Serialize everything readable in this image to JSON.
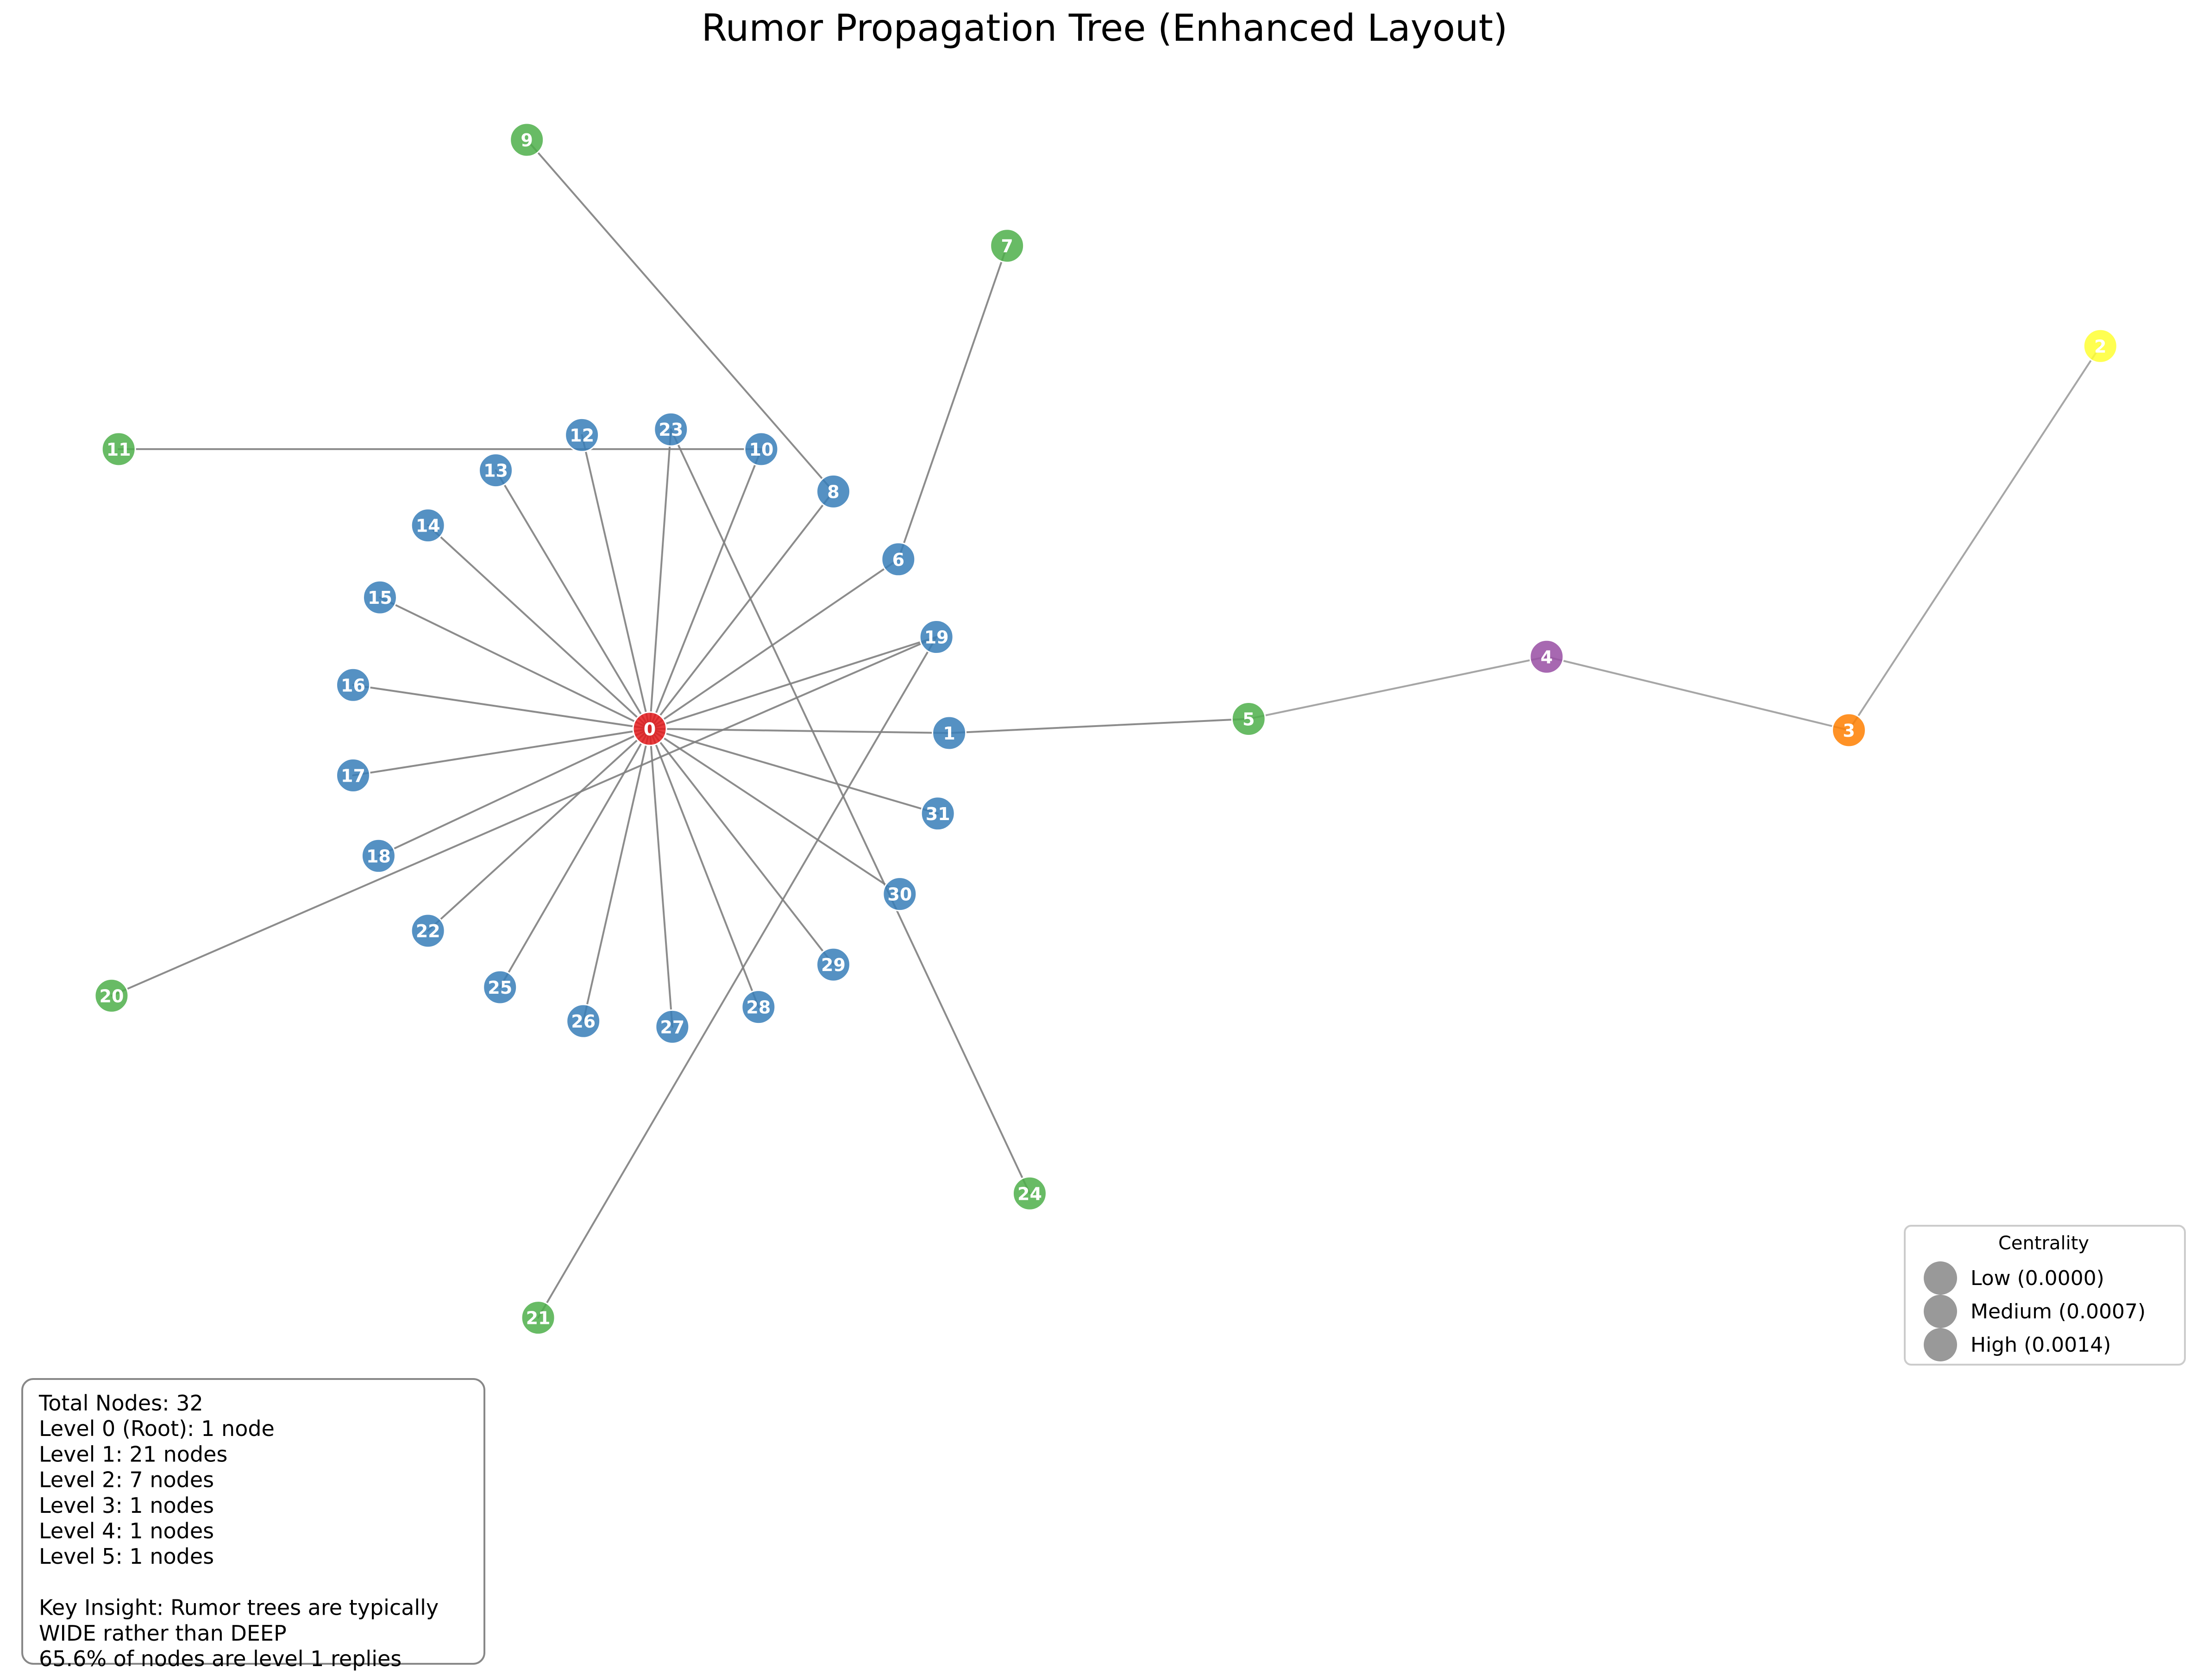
{
  "title": "Rumor Propagation Tree (Enhanced Layout)",
  "level_colors": {
    "0": "#e41a1c",
    "1": "#377eb8",
    "2": "#4daf4a",
    "3": "#984ea3",
    "4": "#ff7f00",
    "5": "#ffff33"
  },
  "nodes": [
    {
      "id": "0",
      "level": 0
    },
    {
      "id": "1",
      "level": 1
    },
    {
      "id": "5",
      "level": 2
    },
    {
      "id": "4",
      "level": 3
    },
    {
      "id": "3",
      "level": 4
    },
    {
      "id": "2",
      "level": 5
    },
    {
      "id": "6",
      "level": 1
    },
    {
      "id": "7",
      "level": 2
    },
    {
      "id": "8",
      "level": 1
    },
    {
      "id": "9",
      "level": 2
    },
    {
      "id": "10",
      "level": 1
    },
    {
      "id": "11",
      "level": 2
    },
    {
      "id": "12",
      "level": 1
    },
    {
      "id": "13",
      "level": 1
    },
    {
      "id": "14",
      "level": 1
    },
    {
      "id": "15",
      "level": 1
    },
    {
      "id": "16",
      "level": 1
    },
    {
      "id": "17",
      "level": 1
    },
    {
      "id": "18",
      "level": 1
    },
    {
      "id": "19",
      "level": 1
    },
    {
      "id": "20",
      "level": 2
    },
    {
      "id": "21",
      "level": 2
    },
    {
      "id": "22",
      "level": 1
    },
    {
      "id": "23",
      "level": 1
    },
    {
      "id": "24",
      "level": 2
    },
    {
      "id": "25",
      "level": 1
    },
    {
      "id": "26",
      "level": 1
    },
    {
      "id": "27",
      "level": 1
    },
    {
      "id": "28",
      "level": 1
    },
    {
      "id": "29",
      "level": 1
    },
    {
      "id": "30",
      "level": 1
    },
    {
      "id": "31",
      "level": 1
    }
  ],
  "edges": [
    [
      "0",
      "1"
    ],
    [
      "1",
      "5"
    ],
    [
      "5",
      "4"
    ],
    [
      "4",
      "3"
    ],
    [
      "3",
      "2"
    ],
    [
      "0",
      "6"
    ],
    [
      "6",
      "7"
    ],
    [
      "0",
      "8"
    ],
    [
      "8",
      "9"
    ],
    [
      "0",
      "10"
    ],
    [
      "10",
      "11"
    ],
    [
      "0",
      "12"
    ],
    [
      "0",
      "13"
    ],
    [
      "0",
      "14"
    ],
    [
      "0",
      "15"
    ],
    [
      "0",
      "16"
    ],
    [
      "0",
      "17"
    ],
    [
      "0",
      "18"
    ],
    [
      "0",
      "19"
    ],
    [
      "19",
      "20"
    ],
    [
      "19",
      "21"
    ],
    [
      "0",
      "22"
    ],
    [
      "0",
      "23"
    ],
    [
      "23",
      "24"
    ],
    [
      "0",
      "25"
    ],
    [
      "0",
      "26"
    ],
    [
      "0",
      "27"
    ],
    [
      "0",
      "28"
    ],
    [
      "0",
      "29"
    ],
    [
      "0",
      "30"
    ],
    [
      "0",
      "31"
    ]
  ],
  "legend": {
    "title": "Centrality",
    "items": [
      {
        "label": "Low (0.0000)"
      },
      {
        "label": "Medium (0.0007)"
      },
      {
        "label": "High (0.0014)"
      }
    ],
    "marker_color": "#808080"
  },
  "stats": {
    "lines": [
      "Total Nodes: 32",
      "Level 0 (Root): 1 node",
      "Level 1: 21 nodes",
      "Level 2: 7 nodes",
      "Level 3: 1 nodes",
      "Level 4: 1 nodes",
      "Level 5: 1 nodes",
      "",
      "Key Insight: Rumor trees are typically",
      "WIDE rather than DEEP",
      "65.6% of nodes are level 1 replies"
    ]
  }
}
